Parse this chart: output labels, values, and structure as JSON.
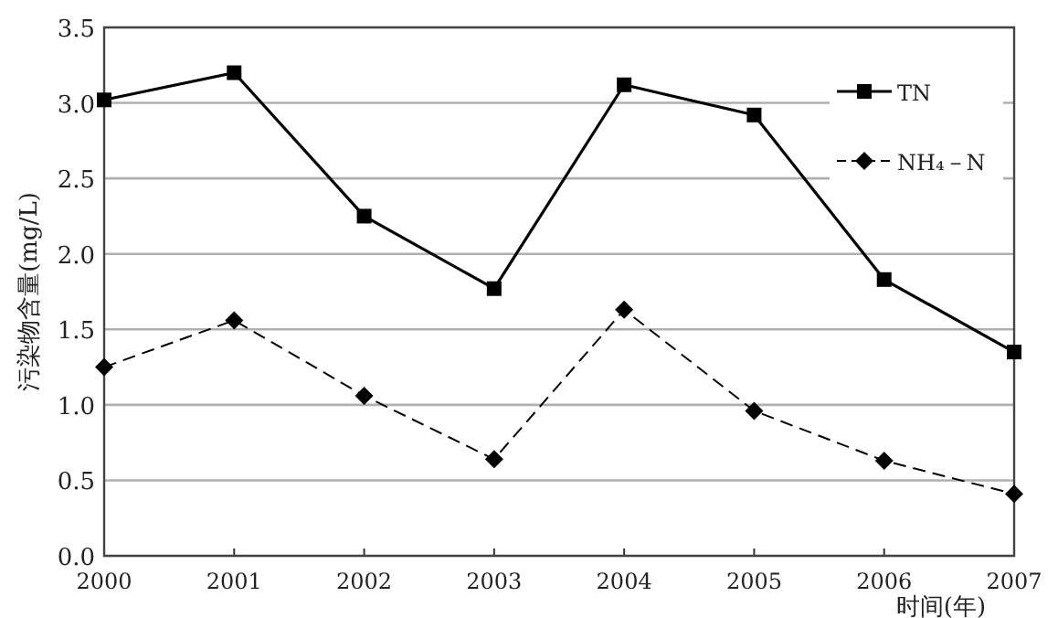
{
  "chart_data": {
    "type": "line",
    "ylabel": "污染物含量(mg/L)",
    "xlabel": "时间(年)",
    "x": [
      2000,
      2001,
      2002,
      2003,
      2004,
      2005,
      2006,
      2007
    ],
    "xlim": [
      2000,
      2007
    ],
    "xticks": [
      2000,
      2001,
      2002,
      2003,
      2004,
      2005,
      2006,
      2007
    ],
    "ylim": [
      0,
      3.5
    ],
    "yticks": [
      {
        "value": 0,
        "label": "0.0"
      },
      0.5,
      {
        "value": 1,
        "label": "1.0"
      },
      1.5,
      {
        "value": 2,
        "label": "2.0"
      },
      2.5,
      {
        "value": 3,
        "label": "3.0"
      },
      3.5
    ],
    "grid": "y",
    "legend": "top right",
    "series": [
      {
        "name": "TN",
        "color": "#000000",
        "marker": "square",
        "line_style": "solid",
        "values": [
          3.02,
          3.2,
          2.25,
          1.77,
          3.12,
          2.92,
          1.83,
          1.35
        ]
      },
      {
        "name": "NH₄－N",
        "color": "#000000",
        "marker": "diamond",
        "line_style": "dashed",
        "values": [
          1.25,
          1.56,
          1.06,
          0.64,
          1.63,
          0.96,
          0.63,
          0.41
        ]
      }
    ]
  }
}
